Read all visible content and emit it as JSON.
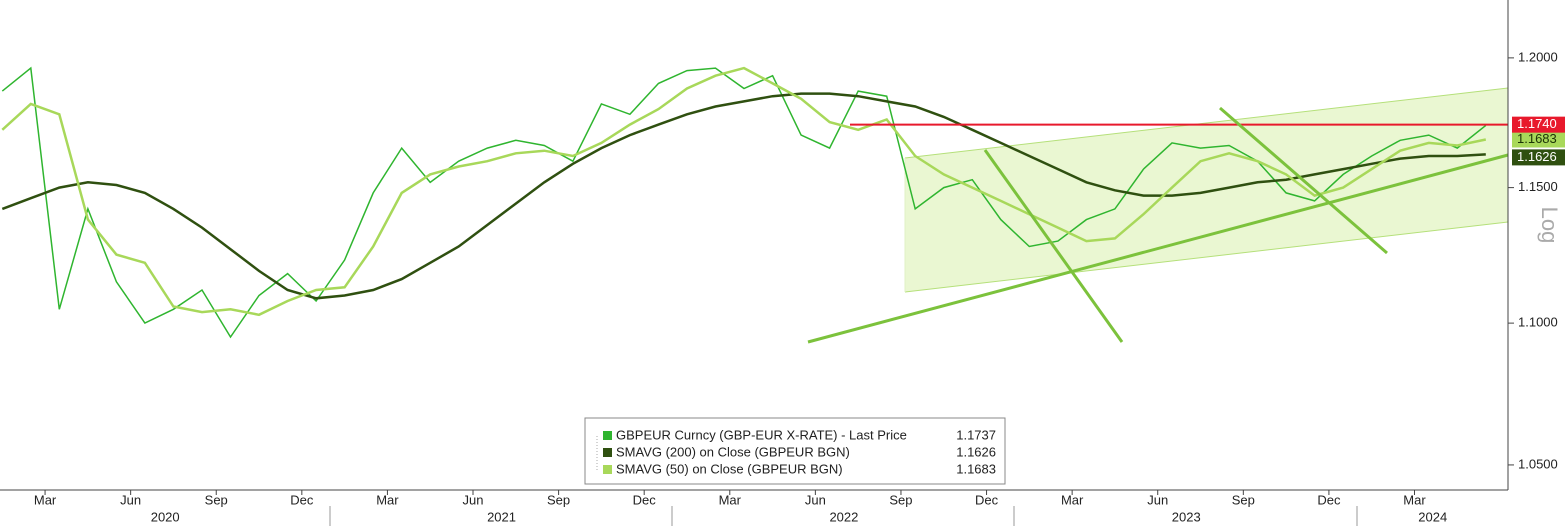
{
  "chart_data": {
    "type": "line",
    "log_scale": true,
    "axis_label": "Log",
    "x": [
      "2020-01",
      "2020-02",
      "2020-03",
      "2020-04",
      "2020-05",
      "2020-06",
      "2020-07",
      "2020-08",
      "2020-09",
      "2020-10",
      "2020-11",
      "2020-12",
      "2021-01",
      "2021-02",
      "2021-03",
      "2021-04",
      "2021-05",
      "2021-06",
      "2021-07",
      "2021-08",
      "2021-09",
      "2021-10",
      "2021-11",
      "2021-12",
      "2022-01",
      "2022-02",
      "2022-03",
      "2022-04",
      "2022-05",
      "2022-06",
      "2022-07",
      "2022-08",
      "2022-09",
      "2022-10",
      "2022-11",
      "2022-12",
      "2023-01",
      "2023-02",
      "2023-03",
      "2023-04",
      "2023-05",
      "2023-06",
      "2023-07",
      "2023-08",
      "2023-09",
      "2023-10",
      "2023-11",
      "2023-12",
      "2024-01",
      "2024-02",
      "2024-03",
      "2024-04",
      "2024-05"
    ],
    "series": [
      {
        "name": "GBPEUR Curncy (GBP-EUR X-RATE) - Last Price",
        "color": "#2fb52f",
        "last_label": "1.1737",
        "values": [
          1.187,
          1.196,
          1.105,
          1.142,
          1.115,
          1.1,
          1.105,
          1.112,
          1.095,
          1.11,
          1.118,
          1.108,
          1.123,
          1.148,
          1.165,
          1.152,
          1.16,
          1.165,
          1.168,
          1.166,
          1.16,
          1.182,
          1.178,
          1.19,
          1.195,
          1.196,
          1.188,
          1.193,
          1.17,
          1.165,
          1.187,
          1.185,
          1.142,
          1.15,
          1.153,
          1.138,
          1.128,
          1.13,
          1.138,
          1.142,
          1.157,
          1.167,
          1.165,
          1.166,
          1.16,
          1.148,
          1.145,
          1.155,
          1.162,
          1.168,
          1.17,
          1.165,
          1.1737
        ]
      },
      {
        "name": "SMAVG (200)  on Close (GBPEUR BGN)",
        "color": "#2f5010",
        "last_label": "1.1626",
        "values": [
          1.142,
          1.146,
          1.15,
          1.152,
          1.151,
          1.148,
          1.142,
          1.135,
          1.127,
          1.119,
          1.112,
          1.109,
          1.11,
          1.112,
          1.116,
          1.122,
          1.128,
          1.136,
          1.144,
          1.152,
          1.159,
          1.165,
          1.17,
          1.174,
          1.178,
          1.181,
          1.183,
          1.185,
          1.186,
          1.186,
          1.185,
          1.183,
          1.181,
          1.177,
          1.172,
          1.167,
          1.162,
          1.157,
          1.152,
          1.149,
          1.147,
          1.147,
          1.148,
          1.15,
          1.152,
          1.153,
          1.155,
          1.157,
          1.159,
          1.161,
          1.162,
          1.162,
          1.1626
        ]
      },
      {
        "name": "SMAVG (50)  on Close (GBPEUR BGN)",
        "color": "#a8d85a",
        "last_label": "1.1683",
        "values": [
          1.172,
          1.182,
          1.178,
          1.138,
          1.125,
          1.122,
          1.106,
          1.104,
          1.105,
          1.103,
          1.108,
          1.112,
          1.113,
          1.128,
          1.148,
          1.155,
          1.158,
          1.16,
          1.163,
          1.164,
          1.162,
          1.167,
          1.174,
          1.18,
          1.188,
          1.193,
          1.196,
          1.19,
          1.184,
          1.175,
          1.172,
          1.176,
          1.162,
          1.155,
          1.15,
          1.145,
          1.14,
          1.135,
          1.13,
          1.131,
          1.14,
          1.15,
          1.16,
          1.163,
          1.16,
          1.155,
          1.147,
          1.15,
          1.157,
          1.164,
          1.167,
          1.166,
          1.1683
        ]
      }
    ],
    "reference_line": {
      "value": 1.174,
      "label": "1.1740",
      "color": "#e8192c"
    },
    "ylim": [
      1.0414,
      1.223
    ],
    "yticks": [
      {
        "value": 1.05,
        "label": "1.0500"
      },
      {
        "value": 1.1,
        "label": "1.1000"
      },
      {
        "value": 1.15,
        "label": "1.1500"
      },
      {
        "value": 1.2,
        "label": "1.2000"
      }
    ],
    "xticks": [
      {
        "value": "2020-03",
        "label": "Mar"
      },
      {
        "value": "2020-06",
        "label": "Jun"
      },
      {
        "value": "2020-09",
        "label": "Sep"
      },
      {
        "value": "2020-12",
        "label": "Dec"
      },
      {
        "value": "2021-03",
        "label": "Mar"
      },
      {
        "value": "2021-06",
        "label": "Jun"
      },
      {
        "value": "2021-09",
        "label": "Sep"
      },
      {
        "value": "2021-12",
        "label": "Dec"
      },
      {
        "value": "2022-03",
        "label": "Mar"
      },
      {
        "value": "2022-06",
        "label": "Jun"
      },
      {
        "value": "2022-09",
        "label": "Sep"
      },
      {
        "value": "2022-12",
        "label": "Dec"
      },
      {
        "value": "2023-03",
        "label": "Mar"
      },
      {
        "value": "2023-06",
        "label": "Jun"
      },
      {
        "value": "2023-09",
        "label": "Sep"
      },
      {
        "value": "2023-12",
        "label": "Dec"
      },
      {
        "value": "2024-03",
        "label": "Mar"
      }
    ],
    "year_labels": [
      "2020",
      "2021",
      "2022",
      "2023",
      "2024"
    ]
  }
}
